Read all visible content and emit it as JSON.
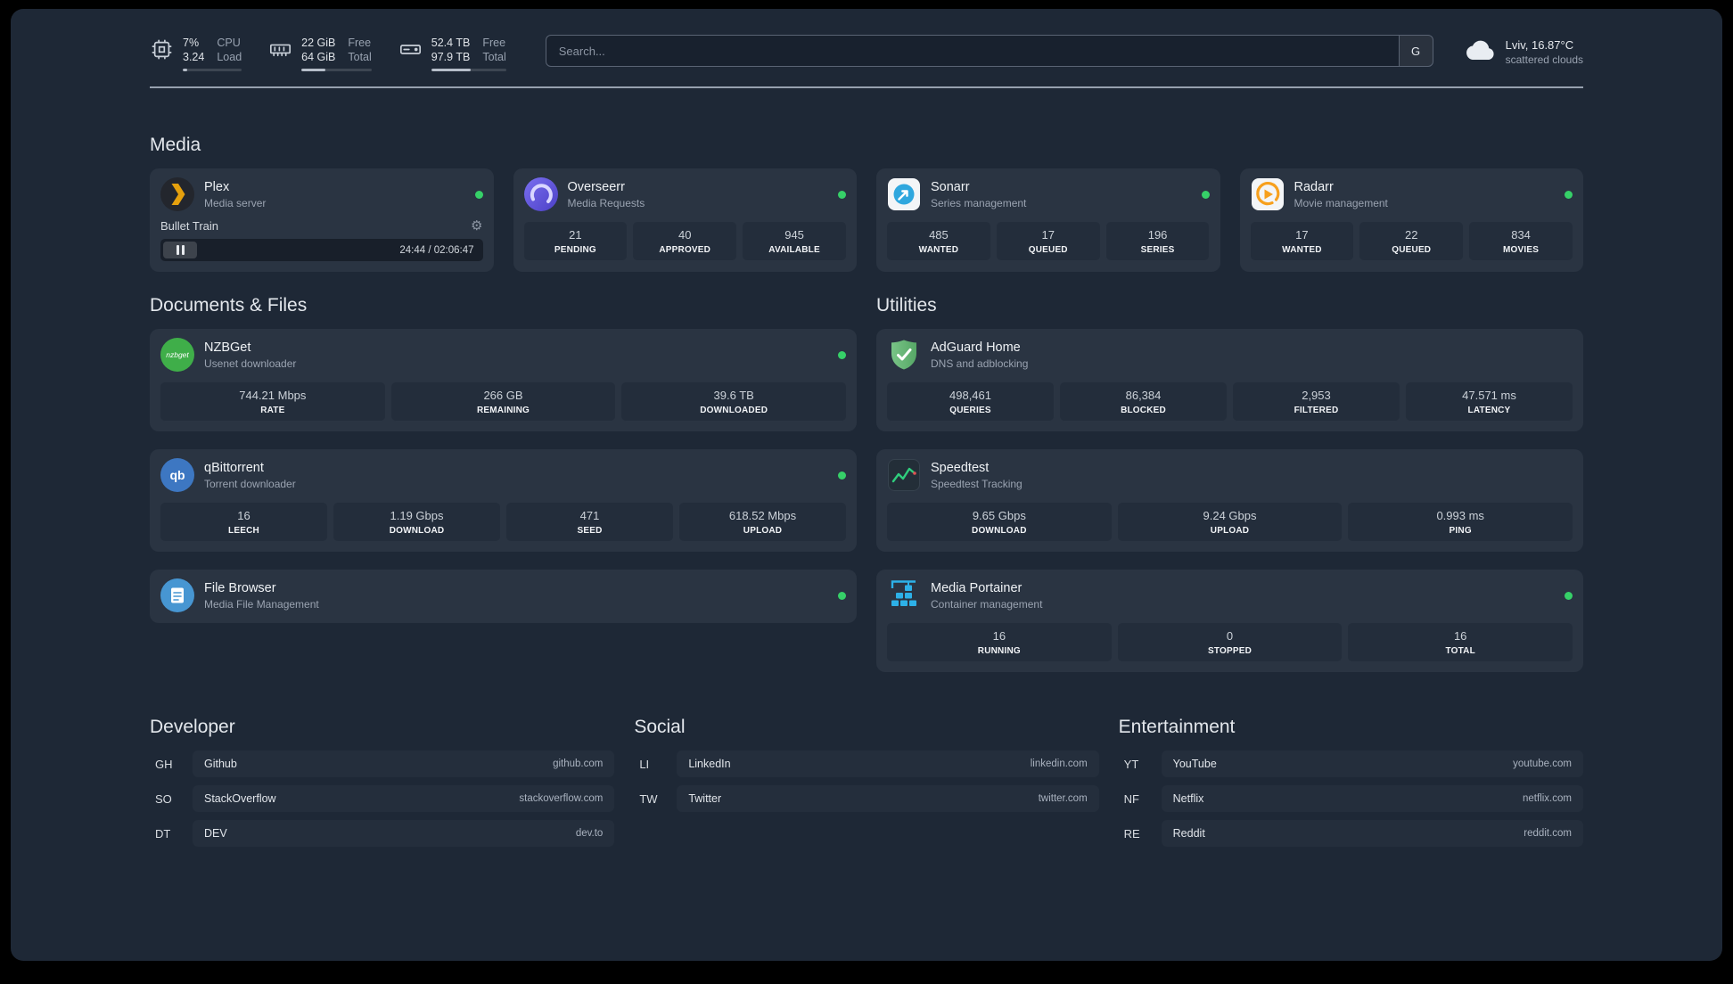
{
  "colors": {
    "background": "#1e2836",
    "card": "#2a3442",
    "stat_box": "#232d3b",
    "status_online": "#36d068",
    "plex_amber": "#e5a00d",
    "radarr_orange": "#f7a01d",
    "sonarr_blue": "#2fa7de",
    "adguard_green": "#67b279",
    "portainer_blue": "#2db1e8"
  },
  "icons": {
    "nzbget": "nzbget",
    "qbittorrent": "qb"
  },
  "topbar": {
    "resources": [
      {
        "line1": "7%",
        "line2": "3.24",
        "label1": "CPU",
        "label2": "Load",
        "progress_pct": 8
      },
      {
        "line1": "22 GiB",
        "line2": "64 GiB",
        "label1": "Free",
        "label2": "Total",
        "progress_pct": 34
      },
      {
        "line1": "52.4 TB",
        "line2": "97.9 TB",
        "label1": "Free",
        "label2": "Total",
        "progress_pct": 53
      }
    ],
    "search": {
      "placeholder": "Search...",
      "button": "G"
    },
    "weather": {
      "location": "Lviv, 16.87°C",
      "condition": "scattered clouds"
    }
  },
  "media": {
    "title": "Media",
    "plex": {
      "name": "Plex",
      "desc": "Media server",
      "player": {
        "track": "Bullet Train",
        "time": "24:44 / 02:06:47"
      }
    },
    "overseerr": {
      "name": "Overseerr",
      "desc": "Media Requests",
      "stats": [
        {
          "value": "21",
          "label": "PENDING"
        },
        {
          "value": "40",
          "label": "APPROVED"
        },
        {
          "value": "945",
          "label": "AVAILABLE"
        }
      ]
    },
    "sonarr": {
      "name": "Sonarr",
      "desc": "Series management",
      "stats": [
        {
          "value": "485",
          "label": "WANTED"
        },
        {
          "value": "17",
          "label": "QUEUED"
        },
        {
          "value": "196",
          "label": "SERIES"
        }
      ]
    },
    "radarr": {
      "name": "Radarr",
      "desc": "Movie management",
      "stats": [
        {
          "value": "17",
          "label": "WANTED"
        },
        {
          "value": "22",
          "label": "QUEUED"
        },
        {
          "value": "834",
          "label": "MOVIES"
        }
      ]
    }
  },
  "documents": {
    "title": "Documents & Files",
    "nzbget": {
      "name": "NZBGet",
      "desc": "Usenet downloader",
      "stats": [
        {
          "value": "744.21 Mbps",
          "label": "RATE"
        },
        {
          "value": "266 GB",
          "label": "REMAINING"
        },
        {
          "value": "39.6 TB",
          "label": "DOWNLOADED"
        }
      ]
    },
    "qbittorrent": {
      "name": "qBittorrent",
      "desc": "Torrent downloader",
      "stats": [
        {
          "value": "16",
          "label": "LEECH"
        },
        {
          "value": "1.19 Gbps",
          "label": "DOWNLOAD"
        },
        {
          "value": "471",
          "label": "SEED"
        },
        {
          "value": "618.52 Mbps",
          "label": "UPLOAD"
        }
      ]
    },
    "filebrowser": {
      "name": "File Browser",
      "desc": "Media File Management"
    }
  },
  "utilities": {
    "title": "Utilities",
    "adguard": {
      "name": "AdGuard Home",
      "desc": "DNS and adblocking",
      "stats": [
        {
          "value": "498,461",
          "label": "QUERIES"
        },
        {
          "value": "86,384",
          "label": "BLOCKED"
        },
        {
          "value": "2,953",
          "label": "FILTERED"
        },
        {
          "value": "47.571 ms",
          "label": "LATENCY"
        }
      ]
    },
    "speedtest": {
      "name": "Speedtest",
      "desc": "Speedtest Tracking",
      "stats": [
        {
          "value": "9.65 Gbps",
          "label": "DOWNLOAD"
        },
        {
          "value": "9.24 Gbps",
          "label": "UPLOAD"
        },
        {
          "value": "0.993 ms",
          "label": "PING"
        }
      ]
    },
    "portainer": {
      "name": "Media Portainer",
      "desc": "Container management",
      "stats": [
        {
          "value": "16",
          "label": "RUNNING"
        },
        {
          "value": "0",
          "label": "STOPPED"
        },
        {
          "value": "16",
          "label": "TOTAL"
        }
      ]
    }
  },
  "bookmarks": {
    "developer": {
      "title": "Developer",
      "items": [
        {
          "abbr": "GH",
          "name": "Github",
          "domain": "github.com"
        },
        {
          "abbr": "SO",
          "name": "StackOverflow",
          "domain": "stackoverflow.com"
        },
        {
          "abbr": "DT",
          "name": "DEV",
          "domain": "dev.to"
        }
      ]
    },
    "social": {
      "title": "Social",
      "items": [
        {
          "abbr": "LI",
          "name": "LinkedIn",
          "domain": "linkedin.com"
        },
        {
          "abbr": "TW",
          "name": "Twitter",
          "domain": "twitter.com"
        }
      ]
    },
    "entertainment": {
      "title": "Entertainment",
      "items": [
        {
          "abbr": "YT",
          "name": "YouTube",
          "domain": "youtube.com"
        },
        {
          "abbr": "NF",
          "name": "Netflix",
          "domain": "netflix.com"
        },
        {
          "abbr": "RE",
          "name": "Reddit",
          "domain": "reddit.com"
        }
      ]
    }
  }
}
